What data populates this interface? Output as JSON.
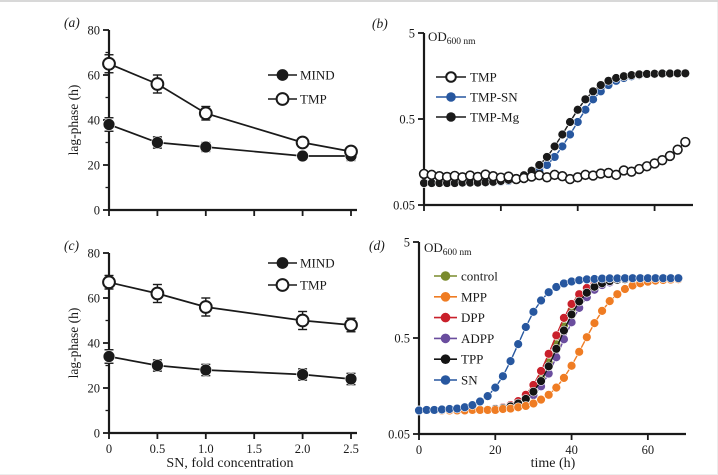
{
  "chart_data": [
    {
      "id": "a",
      "type": "line",
      "panel_label": "(a)",
      "ylabel": "lag-phase (h)",
      "xlabel": "",
      "yscale": "linear",
      "xlim": [
        0,
        2.5
      ],
      "ylim": [
        0,
        80
      ],
      "xticks": [
        0,
        0.5,
        1.0,
        1.5,
        2.0,
        2.5
      ],
      "xtick_labels": null,
      "yticks": [
        0,
        20,
        40,
        60,
        80
      ],
      "ytick_labels": [
        "0",
        "20",
        "40",
        "60",
        "80"
      ],
      "yticks_minor": [
        10,
        30,
        50,
        70
      ],
      "grid": false,
      "legend_position": "right-middle",
      "series": [
        {
          "name": "MIND",
          "marker": "filled",
          "color": "#1a1a1a",
          "x": [
            0,
            0.5,
            1.0,
            2.0,
            2.5
          ],
          "y": [
            38,
            30,
            28,
            24,
            24
          ],
          "err": [
            3,
            2.5,
            2,
            1.5,
            2
          ]
        },
        {
          "name": "TMP",
          "marker": "open",
          "color": "#1a1a1a",
          "x": [
            0,
            0.5,
            1.0,
            2.0,
            2.5
          ],
          "y": [
            65,
            56,
            43,
            30,
            26
          ],
          "err": [
            4,
            4,
            3,
            2,
            2
          ]
        }
      ]
    },
    {
      "id": "b",
      "type": "line",
      "panel_label": "(b)",
      "od_main": "OD",
      "od_sub": "600 nm",
      "xlabel": "",
      "yscale": "log",
      "xlim": [
        0,
        70
      ],
      "ylim": [
        0.05,
        5
      ],
      "xticks": [
        0,
        20,
        40,
        60
      ],
      "xtick_labels": null,
      "yticks": [
        0.05,
        0.5,
        5
      ],
      "ytick_labels": [
        "0.05",
        "0.5",
        "5"
      ],
      "grid": false,
      "legend_position": "upper-left",
      "t": [
        0,
        2,
        4,
        6,
        8,
        10,
        12,
        14,
        16,
        18,
        20,
        22,
        24,
        26,
        28,
        30,
        32,
        34,
        36,
        38,
        40,
        42,
        44,
        46,
        48,
        50,
        52,
        54,
        56,
        58,
        60,
        62,
        64,
        66,
        68
      ],
      "draw_order": [
        1,
        2,
        0
      ],
      "series": [
        {
          "name": "TMP",
          "marker": "open",
          "color": "#1a1a1a",
          "y": [
            0.115,
            0.112,
            0.108,
            0.106,
            0.109,
            0.105,
            0.11,
            0.106,
            0.113,
            0.108,
            0.104,
            0.107,
            0.1,
            0.103,
            0.107,
            0.111,
            0.105,
            0.112,
            0.108,
            0.1,
            0.105,
            0.112,
            0.11,
            0.116,
            0.118,
            0.112,
            0.126,
            0.122,
            0.131,
            0.141,
            0.152,
            0.166,
            0.186,
            0.22,
            0.27
          ]
        },
        {
          "name": "TMP-SN",
          "marker": "filled",
          "color": "#27579f",
          "y": [
            0.09,
            0.09,
            0.09,
            0.09,
            0.09,
            0.09,
            0.091,
            0.091,
            0.091,
            0.092,
            0.093,
            0.095,
            0.098,
            0.103,
            0.111,
            0.125,
            0.146,
            0.181,
            0.24,
            0.33,
            0.461,
            0.641,
            0.847,
            1.05,
            1.24,
            1.39,
            1.5,
            1.57,
            1.62,
            1.65,
            1.67,
            1.68,
            1.69,
            1.69,
            1.7
          ]
        },
        {
          "name": "TMP-Mg",
          "marker": "filled",
          "color": "#1a1a1a",
          "y": [
            0.09,
            0.09,
            0.09,
            0.09,
            0.09,
            0.091,
            0.091,
            0.091,
            0.092,
            0.093,
            0.095,
            0.098,
            0.103,
            0.111,
            0.125,
            0.146,
            0.181,
            0.24,
            0.33,
            0.461,
            0.641,
            0.847,
            1.05,
            1.24,
            1.39,
            1.5,
            1.57,
            1.62,
            1.65,
            1.67,
            1.68,
            1.69,
            1.69,
            1.7,
            1.7
          ]
        }
      ]
    },
    {
      "id": "c",
      "type": "line",
      "panel_label": "(c)",
      "ylabel": "lag-phase (h)",
      "xlabel": "SN, fold concentration",
      "yscale": "linear",
      "xlim": [
        0,
        2.5
      ],
      "ylim": [
        0,
        80
      ],
      "xticks": [
        0,
        0.5,
        1.0,
        1.5,
        2.0,
        2.5
      ],
      "xtick_labels": [
        "0",
        "0.5",
        "1.0",
        "1.5",
        "2.0",
        "2.5"
      ],
      "yticks": [
        0,
        20,
        40,
        60,
        80
      ],
      "ytick_labels": [
        "0",
        "20",
        "40",
        "60",
        "80"
      ],
      "yticks_minor": [
        10,
        30,
        50,
        70
      ],
      "grid": false,
      "legend_position": "upper-right",
      "series": [
        {
          "name": "MIND",
          "marker": "filled",
          "color": "#1a1a1a",
          "x": [
            0,
            0.5,
            1.0,
            2.0,
            2.5
          ],
          "y": [
            34,
            30,
            28,
            26,
            24
          ],
          "err": [
            3,
            2.5,
            2.5,
            2.5,
            2.5
          ]
        },
        {
          "name": "TMP",
          "marker": "open",
          "color": "#1a1a1a",
          "x": [
            0,
            0.5,
            1.0,
            2.0,
            2.5
          ],
          "y": [
            67,
            62,
            56,
            50,
            48
          ],
          "err": [
            3,
            4,
            4,
            4,
            3
          ]
        }
      ]
    },
    {
      "id": "d",
      "type": "line",
      "panel_label": "(d)",
      "od_main": "OD",
      "od_sub": "600 nm",
      "xlabel": "time (h)",
      "yscale": "log",
      "xlim": [
        0,
        70
      ],
      "ylim": [
        0.05,
        5
      ],
      "xticks": [
        0,
        20,
        40,
        60
      ],
      "xtick_labels": [
        "0",
        "20",
        "40",
        "60"
      ],
      "yticks": [
        0.05,
        0.5,
        5
      ],
      "ytick_labels": [
        "0.05",
        "0.5",
        "5"
      ],
      "grid": false,
      "legend_position": "upper-left",
      "t": [
        0,
        2,
        4,
        6,
        8,
        10,
        12,
        14,
        16,
        18,
        20,
        22,
        24,
        26,
        28,
        30,
        32,
        34,
        36,
        38,
        40,
        42,
        44,
        46,
        48,
        50,
        52,
        54,
        56,
        58,
        60,
        62,
        64,
        66,
        68
      ],
      "draw_order": [
        0,
        3,
        2,
        4,
        1,
        5
      ],
      "series": [
        {
          "name": "control",
          "marker": "filled",
          "color": "#7a8b2d",
          "y": [
            0.088,
            0.088,
            0.088,
            0.088,
            0.088,
            0.089,
            0.089,
            0.089,
            0.089,
            0.09,
            0.091,
            0.093,
            0.097,
            0.104,
            0.118,
            0.143,
            0.19,
            0.277,
            0.43,
            0.668,
            0.975,
            1.29,
            1.57,
            1.77,
            1.9,
            1.98,
            2.03,
            2.06,
            2.08,
            2.08,
            2.09,
            2.09,
            2.1,
            2.1,
            2.1
          ]
        },
        {
          "name": "MPP",
          "marker": "filled",
          "color": "#ef7c23",
          "y": [
            0.088,
            0.088,
            0.088,
            0.088,
            0.088,
            0.088,
            0.088,
            0.089,
            0.089,
            0.089,
            0.089,
            0.091,
            0.092,
            0.095,
            0.098,
            0.104,
            0.114,
            0.128,
            0.152,
            0.192,
            0.257,
            0.359,
            0.51,
            0.714,
            0.958,
            1.21,
            1.43,
            1.62,
            1.76,
            1.86,
            1.93,
            1.98,
            2.01,
            2.03,
            2.05
          ]
        },
        {
          "name": "DPP",
          "marker": "filled",
          "color": "#c9202b",
          "y": [
            0.088,
            0.088,
            0.088,
            0.088,
            0.088,
            0.089,
            0.089,
            0.089,
            0.089,
            0.09,
            0.092,
            0.095,
            0.1,
            0.11,
            0.128,
            0.162,
            0.227,
            0.342,
            0.533,
            0.81,
            1.13,
            1.43,
            1.66,
            1.81,
            1.91,
            1.97,
            2.01,
            2.04,
            2.06,
            2.07,
            2.08,
            2.09,
            2.09,
            2.1,
            2.1
          ]
        },
        {
          "name": "ADPP",
          "marker": "filled",
          "color": "#6a4d9e",
          "y": [
            0.088,
            0.088,
            0.088,
            0.088,
            0.088,
            0.088,
            0.089,
            0.089,
            0.089,
            0.09,
            0.09,
            0.092,
            0.095,
            0.1,
            0.11,
            0.127,
            0.157,
            0.213,
            0.315,
            0.485,
            0.73,
            1.03,
            1.33,
            1.59,
            1.78,
            1.9,
            1.99,
            2.03,
            2.06,
            2.07,
            2.08,
            2.09,
            2.09,
            2.1,
            2.1
          ]
        },
        {
          "name": "TPP",
          "marker": "filled",
          "color": "#141414",
          "y": [
            0.088,
            0.088,
            0.088,
            0.088,
            0.088,
            0.089,
            0.089,
            0.089,
            0.09,
            0.09,
            0.091,
            0.093,
            0.097,
            0.104,
            0.116,
            0.138,
            0.178,
            0.253,
            0.386,
            0.599,
            0.879,
            1.2,
            1.48,
            1.71,
            1.86,
            1.96,
            2.02,
            2.05,
            2.07,
            2.08,
            2.09,
            2.09,
            2.1,
            2.1,
            2.1
          ]
        },
        {
          "name": "SN",
          "marker": "filled",
          "color": "#27579f",
          "y": [
            0.088,
            0.089,
            0.089,
            0.09,
            0.091,
            0.092,
            0.095,
            0.1,
            0.109,
            0.124,
            0.152,
            0.2,
            0.287,
            0.432,
            0.651,
            0.937,
            1.23,
            1.5,
            1.7,
            1.85,
            1.94,
            2.0,
            2.04,
            2.06,
            2.08,
            2.09,
            2.09,
            2.1,
            2.1,
            2.1,
            2.1,
            2.1,
            2.1,
            2.1,
            2.1
          ]
        }
      ]
    }
  ]
}
